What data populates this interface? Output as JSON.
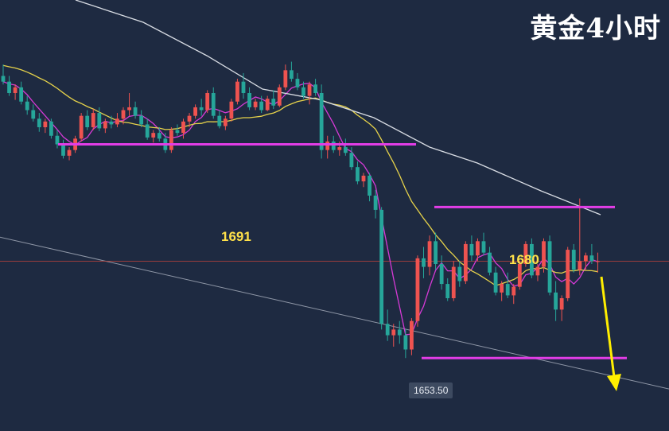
{
  "title": "黄金4小时",
  "chart_data": {
    "type": "candlestick",
    "title": "黄金4小时",
    "colors": {
      "up": "#ef5350",
      "down": "#26a69a",
      "ma_fast": "#d63ad6",
      "ma_mid": "#e6d24a",
      "ma_slow": "#d9dde4",
      "level": "#e23de6",
      "trendline": "#8e96a6",
      "current_price": "#c2453c",
      "arrow": "#ffee00",
      "background": "#1e2a41"
    },
    "levels": [
      {
        "label": "1691",
        "value": 1691
      },
      {
        "label": "1680",
        "value": 1680
      },
      {
        "label": "",
        "value": 1653.5
      }
    ],
    "price_tag": "1653.50",
    "current_price": 1670.5,
    "candles": [
      [
        1703.0,
        1705.0,
        1701.5,
        1702.0
      ],
      [
        1702.0,
        1703.0,
        1699.5,
        1700.0
      ],
      [
        1700.0,
        1701.5,
        1698.8,
        1701.0
      ],
      [
        1701.0,
        1702.0,
        1698.0,
        1698.5
      ],
      [
        1698.5,
        1699.5,
        1696.2,
        1697.0
      ],
      [
        1697.0,
        1698.0,
        1695.0,
        1695.5
      ],
      [
        1695.5,
        1696.5,
        1693.2,
        1694.0
      ],
      [
        1694.0,
        1695.5,
        1693.0,
        1695.0
      ],
      [
        1695.0,
        1695.5,
        1692.0,
        1692.5
      ],
      [
        1692.5,
        1693.5,
        1690.3,
        1691.0
      ],
      [
        1691.0,
        1691.8,
        1688.5,
        1689.0
      ],
      [
        1689.0,
        1690.5,
        1688.2,
        1690.0
      ],
      [
        1690.0,
        1692.5,
        1689.5,
        1692.0
      ],
      [
        1692.0,
        1696.5,
        1691.5,
        1696.0
      ],
      [
        1696.0,
        1697.0,
        1693.5,
        1694.0
      ],
      [
        1694.0,
        1697.2,
        1693.5,
        1696.5
      ],
      [
        1696.5,
        1697.5,
        1693.3,
        1693.8
      ],
      [
        1693.8,
        1695.5,
        1693.0,
        1695.0
      ],
      [
        1695.0,
        1696.0,
        1693.8,
        1694.5
      ],
      [
        1694.5,
        1696.5,
        1694.0,
        1695.5
      ],
      [
        1695.5,
        1697.5,
        1694.5,
        1697.0
      ],
      [
        1697.0,
        1700.0,
        1696.0,
        1697.5
      ],
      [
        1697.5,
        1698.5,
        1695.5,
        1696.0
      ],
      [
        1696.0,
        1697.0,
        1694.0,
        1694.5
      ],
      [
        1694.5,
        1695.5,
        1691.8,
        1692.2
      ],
      [
        1692.2,
        1693.5,
        1691.3,
        1693.0
      ],
      [
        1693.0,
        1694.0,
        1691.5,
        1692.0
      ],
      [
        1692.0,
        1693.0,
        1689.5,
        1690.0
      ],
      [
        1690.0,
        1694.0,
        1689.5,
        1693.5
      ],
      [
        1693.5,
        1694.5,
        1692.5,
        1693.0
      ],
      [
        1693.0,
        1695.5,
        1692.0,
        1695.0
      ],
      [
        1695.0,
        1696.5,
        1694.0,
        1696.0
      ],
      [
        1696.0,
        1698.0,
        1695.5,
        1697.5
      ],
      [
        1697.5,
        1699.0,
        1696.0,
        1697.0
      ],
      [
        1697.0,
        1700.5,
        1696.5,
        1700.0
      ],
      [
        1700.0,
        1701.0,
        1695.5,
        1696.0
      ],
      [
        1696.0,
        1697.0,
        1693.8,
        1694.2
      ],
      [
        1694.2,
        1696.0,
        1693.5,
        1695.5
      ],
      [
        1695.5,
        1699.0,
        1695.0,
        1698.5
      ],
      [
        1698.5,
        1702.5,
        1698.0,
        1702.0
      ],
      [
        1702.0,
        1703.5,
        1699.0,
        1700.0
      ],
      [
        1700.0,
        1701.0,
        1697.0,
        1697.5
      ],
      [
        1697.5,
        1699.0,
        1697.0,
        1698.5
      ],
      [
        1698.5,
        1699.5,
        1696.5,
        1697.0
      ],
      [
        1697.0,
        1699.5,
        1696.8,
        1699.0
      ],
      [
        1699.0,
        1700.5,
        1697.2,
        1697.8
      ],
      [
        1697.8,
        1701.5,
        1697.5,
        1701.0
      ],
      [
        1701.0,
        1705.0,
        1700.5,
        1704.0
      ],
      [
        1704.0,
        1705.5,
        1702.0,
        1702.5
      ],
      [
        1702.5,
        1703.5,
        1700.5,
        1701.0
      ],
      [
        1701.0,
        1702.0,
        1699.0,
        1699.5
      ],
      [
        1699.5,
        1702.0,
        1698.0,
        1701.5
      ],
      [
        1701.5,
        1702.5,
        1699.5,
        1700.0
      ],
      [
        1700.0,
        1701.5,
        1688.5,
        1690.0
      ],
      [
        1690.0,
        1692.5,
        1688.5,
        1691.5
      ],
      [
        1691.5,
        1692.5,
        1689.5,
        1690.0
      ],
      [
        1690.0,
        1691.5,
        1689.0,
        1690.5
      ],
      [
        1690.5,
        1692.0,
        1689.0,
        1689.5
      ],
      [
        1689.5,
        1690.5,
        1686.5,
        1687.0
      ],
      [
        1687.0,
        1688.0,
        1684.0,
        1684.5
      ],
      [
        1684.5,
        1686.0,
        1683.5,
        1685.5
      ],
      [
        1685.5,
        1686.0,
        1681.0,
        1682.0
      ],
      [
        1682.0,
        1683.0,
        1678.0,
        1679.5
      ],
      [
        1679.5,
        1680.0,
        1658.5,
        1659.5
      ],
      [
        1659.5,
        1662.0,
        1656.5,
        1657.5
      ],
      [
        1657.5,
        1659.5,
        1655.5,
        1658.5
      ],
      [
        1658.5,
        1660.0,
        1656.0,
        1657.5
      ],
      [
        1657.5,
        1658.5,
        1653.5,
        1655.0
      ],
      [
        1655.0,
        1660.5,
        1654.0,
        1660.0
      ],
      [
        1660.0,
        1671.5,
        1659.0,
        1671.0
      ],
      [
        1671.0,
        1673.0,
        1667.5,
        1669.5
      ],
      [
        1669.5,
        1675.0,
        1668.0,
        1674.0
      ],
      [
        1674.0,
        1675.5,
        1669.0,
        1670.0
      ],
      [
        1670.0,
        1671.5,
        1665.5,
        1666.5
      ],
      [
        1666.5,
        1667.5,
        1663.5,
        1664.0
      ],
      [
        1664.0,
        1670.5,
        1663.5,
        1669.5
      ],
      [
        1669.5,
        1670.5,
        1666.0,
        1667.0
      ],
      [
        1667.0,
        1674.0,
        1666.5,
        1673.5
      ],
      [
        1673.5,
        1675.0,
        1670.5,
        1671.5
      ],
      [
        1671.5,
        1674.5,
        1670.5,
        1674.0
      ],
      [
        1674.0,
        1675.5,
        1671.5,
        1672.0
      ],
      [
        1672.0,
        1673.0,
        1668.0,
        1668.5
      ],
      [
        1668.5,
        1669.5,
        1664.5,
        1665.0
      ],
      [
        1665.0,
        1667.0,
        1663.5,
        1666.5
      ],
      [
        1666.5,
        1668.5,
        1664.0,
        1664.5
      ],
      [
        1664.5,
        1666.5,
        1663.0,
        1666.0
      ],
      [
        1666.0,
        1670.5,
        1665.5,
        1670.0
      ],
      [
        1670.0,
        1674.0,
        1669.5,
        1673.5
      ],
      [
        1673.5,
        1674.5,
        1667.5,
        1668.0
      ],
      [
        1668.0,
        1670.0,
        1667.0,
        1669.5
      ],
      [
        1669.5,
        1674.5,
        1668.5,
        1674.0
      ],
      [
        1674.0,
        1675.0,
        1664.5,
        1665.0
      ],
      [
        1665.0,
        1667.0,
        1660.0,
        1662.0
      ],
      [
        1662.0,
        1664.5,
        1660.0,
        1664.0
      ],
      [
        1664.0,
        1673.0,
        1663.5,
        1672.5
      ],
      [
        1672.5,
        1673.5,
        1668.5,
        1669.0
      ],
      [
        1669.0,
        1681.5,
        1668.0,
        1670.5
      ],
      [
        1670.5,
        1672.0,
        1669.0,
        1671.5
      ],
      [
        1671.5,
        1673.5,
        1670.0,
        1670.5
      ],
      [
        1670.5,
        1672.0,
        1668.5,
        1670.5
      ]
    ]
  }
}
